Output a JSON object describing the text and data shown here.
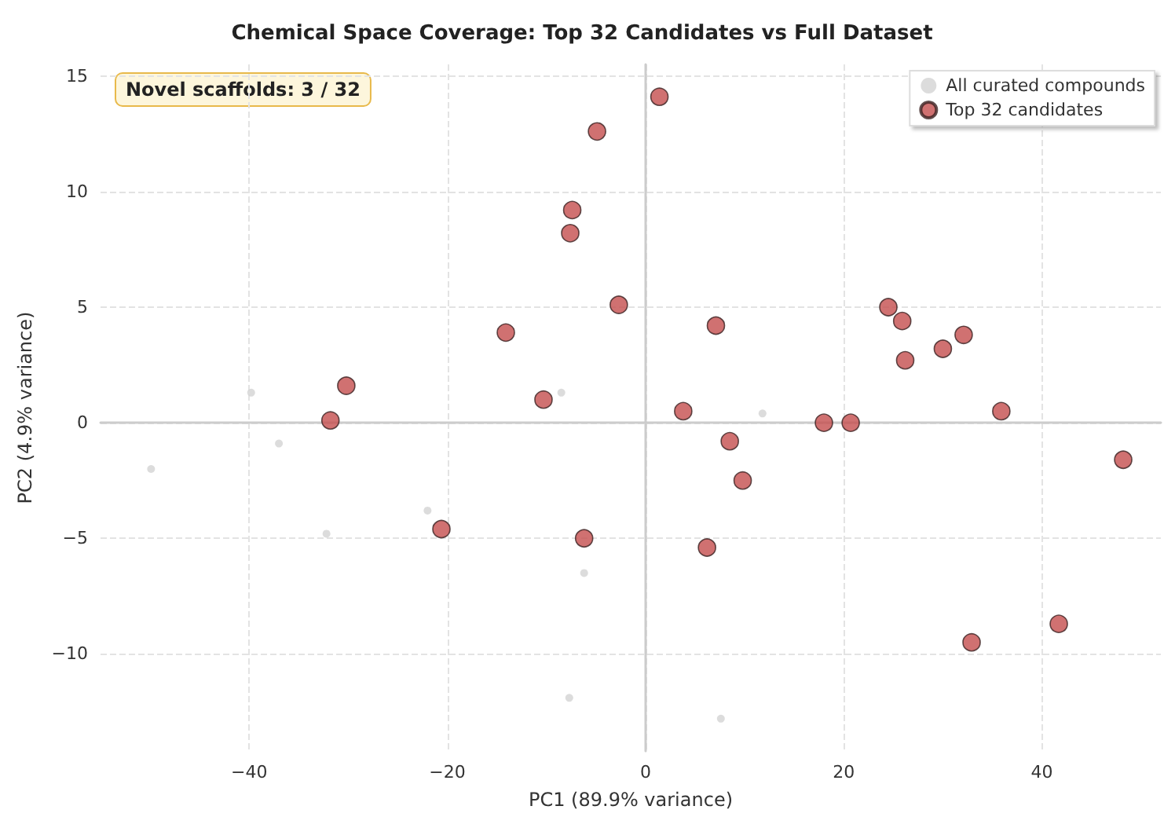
{
  "chart_data": {
    "type": "scatter",
    "title": "Chemical Space Coverage: Top 32 Candidates vs Full Dataset",
    "xlabel": "PC1 (89.9% variance)",
    "ylabel": "PC2 (4.9% variance)",
    "annotations": [
      "Novel scaffolds: 3 / 32"
    ],
    "xlim": [
      -55,
      52
    ],
    "ylim": [
      -14.2,
      15.5
    ],
    "xticks": [
      -40,
      -20,
      0,
      20,
      40
    ],
    "yticks": [
      -10,
      -5,
      0,
      5,
      10,
      15
    ],
    "grid": true,
    "legend": "top right",
    "marker": "circle",
    "series": [
      {
        "name": "All curated compounds",
        "color": "#d3d3d3",
        "x": [
          -49.9,
          -39.8,
          -37,
          -32.2,
          -22,
          -8.5,
          -6.2,
          -7.7,
          11.8,
          7.6
        ],
        "values": [
          -2.0,
          1.3,
          -0.9,
          -4.8,
          -3.8,
          1.3,
          -6.5,
          -11.9,
          0.4,
          -12.8
        ]
      },
      {
        "name": "Top 32 candidates",
        "color": "#c44e4e",
        "x": [
          1.4,
          -4.9,
          -7.4,
          -7.6,
          -2.7,
          -14.1,
          -30.2,
          -31.8,
          -10.3,
          -20.6,
          -6.2,
          7.1,
          3.8,
          8.5,
          9.8,
          6.2,
          18.0,
          20.7,
          24.5,
          25.9,
          26.2,
          30.0,
          32.1,
          35.9,
          48.2,
          32.9,
          41.7
        ],
        "values": [
          14.1,
          12.6,
          9.2,
          8.2,
          5.1,
          3.9,
          1.6,
          0.1,
          1.0,
          -4.6,
          -5.0,
          4.2,
          0.5,
          -0.8,
          -2.5,
          -5.4,
          0.0,
          0.0,
          5.0,
          4.4,
          2.7,
          3.2,
          3.8,
          0.5,
          -1.6,
          -9.5,
          -8.7
        ]
      }
    ]
  }
}
